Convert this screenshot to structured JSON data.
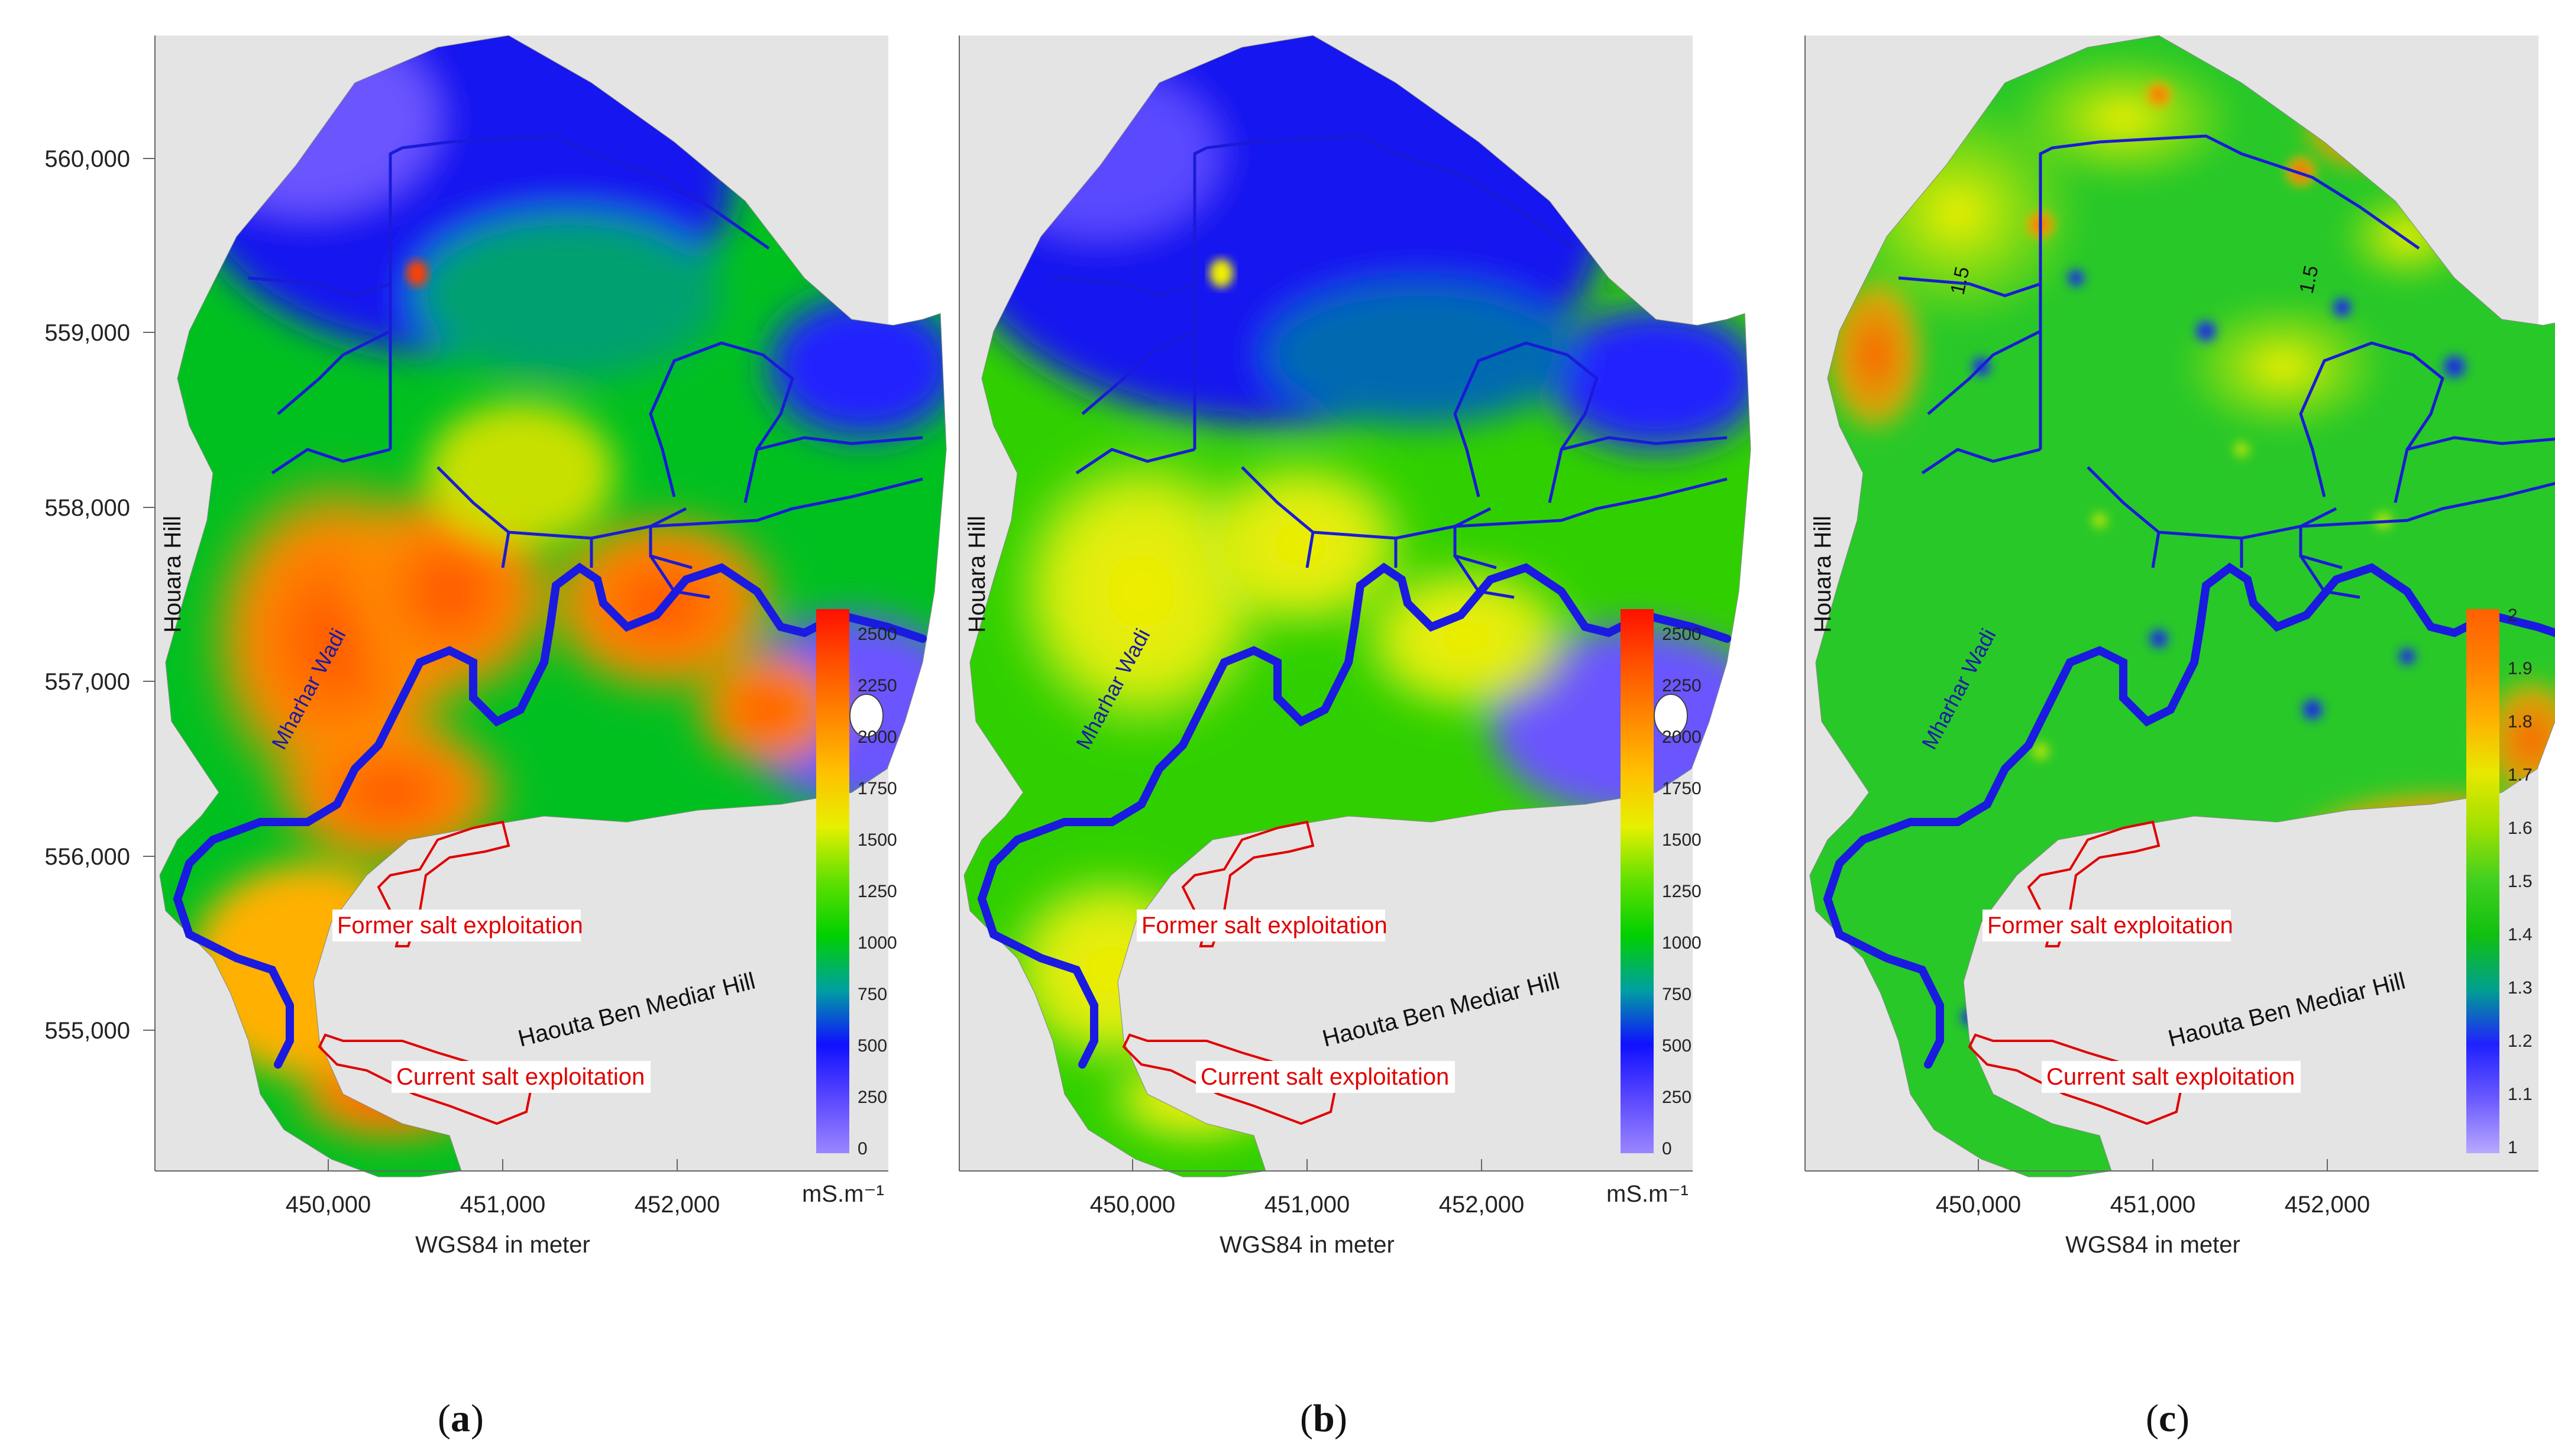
{
  "panels": [
    {
      "id": "a",
      "caption_letter": "a",
      "y_ticks": [
        "560,000",
        "559,000",
        "558,000",
        "557,000",
        "556,000",
        "555,000"
      ],
      "x_ticks": [
        "450,000",
        "451,000",
        "452,000"
      ],
      "x_axis_title": "WGS84 in meter",
      "unit": "mS.m⁻¹",
      "colorbar_ticks": [
        "2500",
        "2250",
        "2000",
        "1750",
        "1500",
        "1250",
        "1000",
        "750",
        "500",
        "250",
        "0"
      ],
      "labels": {
        "west_hill": "Houara Hill",
        "south_hill": "Haouta Ben Mediar Hill",
        "wadi": "Mharhar Wadi",
        "former_salt": "Former salt exploitation",
        "current_salt": "Current salt exploitation"
      }
    },
    {
      "id": "b",
      "caption_letter": "b",
      "y_ticks": [],
      "x_ticks": [
        "450,000",
        "451,000",
        "452,000"
      ],
      "x_axis_title": "WGS84 in meter",
      "unit": "mS.m⁻¹",
      "colorbar_ticks": [
        "2500",
        "2250",
        "2000",
        "1750",
        "1500",
        "1250",
        "1000",
        "750",
        "500",
        "250",
        "0"
      ],
      "labels": {
        "west_hill": "Houara Hill",
        "south_hill": "Haouta Ben Mediar Hill",
        "wadi": "Mharhar Wadi",
        "former_salt": "Former salt exploitation",
        "current_salt": "Current salt exploitation"
      }
    },
    {
      "id": "c",
      "caption_letter": "c",
      "y_ticks": [],
      "x_ticks": [
        "450,000",
        "451,000",
        "452,000"
      ],
      "x_axis_title": "WGS84 in meter",
      "unit": "",
      "colorbar_ticks": [
        "2",
        "1.9",
        "1.8",
        "1.7",
        "1.6",
        "1.5",
        "1.4",
        "1.3",
        "1.2",
        "1.1",
        "1"
      ],
      "contour_labels": [
        "1.5",
        "1.5"
      ],
      "labels": {
        "west_hill": "Houara Hill",
        "south_hill": "Haouta Ben Mediar Hill",
        "wadi": "Mharhar Wadi",
        "former_salt": "Former salt exploitation",
        "current_salt": "Current salt exploitation"
      }
    }
  ],
  "colors": {
    "background_gray": "#e4e4e4",
    "river": "#1a1ae0",
    "salt_outline": "#e00000",
    "low": "#7a5cff",
    "mid": "#00c000",
    "high": "#ff2000"
  }
}
